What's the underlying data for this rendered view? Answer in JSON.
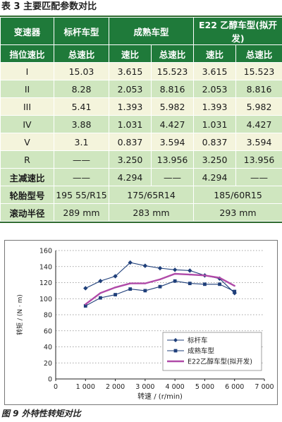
{
  "table": {
    "title": "表 3   主要匹配参数对比",
    "header1": [
      "变速器",
      "标杆车型",
      "成熟车型",
      "E22 乙醇车型(拟开发)"
    ],
    "header2": [
      "挡位速比",
      "总速比",
      "速比",
      "总速比",
      "速比",
      "总速比"
    ],
    "gear_rows": [
      [
        "I",
        "15.03",
        "3.615",
        "15.523",
        "3.615",
        "15.523"
      ],
      [
        "II",
        "8.28",
        "2.053",
        "8.816",
        "2.053",
        "8.816"
      ],
      [
        "III",
        "5.41",
        "1.393",
        "5.982",
        "1.393",
        "5.982"
      ],
      [
        "IV",
        "3.88",
        "1.031",
        "4.427",
        "1.031",
        "4.427"
      ],
      [
        "V",
        "3.1",
        "0.837",
        "3.594",
        "0.837",
        "3.594"
      ],
      [
        "R",
        "——",
        "3.250",
        "13.956",
        "3.250",
        "13.956"
      ]
    ],
    "final_drive": {
      "label": "主减速比",
      "benchmark": "——",
      "mature_ratio": "4.294",
      "mature_total": "——",
      "e22_ratio": "4.294",
      "e22_total": "——"
    },
    "tire": {
      "label": "轮胎型号",
      "benchmark": "195 55/R15",
      "mature": "175/65R14",
      "e22": "185/60R15"
    },
    "radius": {
      "label": "滚动半径",
      "benchmark": "289 mm",
      "mature": "283 mm",
      "e22": "293 mm"
    }
  },
  "chart_data": {
    "type": "line",
    "title": "",
    "xlabel": "转速 / (r/min)",
    "ylabel": "转矩 / (N · m)",
    "xlim": [
      0,
      7000
    ],
    "ylim": [
      0,
      160
    ],
    "x_ticks": [
      0,
      1000,
      2000,
      3000,
      4000,
      5000,
      6000,
      7000
    ],
    "x_tick_labels": [
      "0",
      "1 000",
      "2 000",
      "3 000",
      "4 000",
      "5 000",
      "6 000",
      "7 000"
    ],
    "y_ticks": [
      0,
      20,
      40,
      60,
      80,
      100,
      120,
      140,
      160
    ],
    "grid": "horizontal-dotted",
    "legend_position": "bottom-right",
    "series": [
      {
        "name": "标杆车",
        "color": "#1f3f7a",
        "marker": "diamond",
        "x": [
          1000,
          1500,
          2000,
          2500,
          3000,
          3500,
          4000,
          4500,
          5000,
          5500,
          6000
        ],
        "y": [
          113,
          122,
          128,
          145,
          141,
          138,
          136,
          135,
          129,
          125,
          107
        ]
      },
      {
        "name": "成熟车型",
        "color": "#1f3f7a",
        "marker": "square",
        "x": [
          1000,
          1500,
          2000,
          2500,
          3000,
          3500,
          4000,
          4500,
          5000,
          5500,
          6000
        ],
        "y": [
          91,
          101,
          105,
          112,
          110,
          115,
          122,
          119,
          118,
          118,
          109
        ]
      },
      {
        "name": "E22乙醇车型(拟开发)",
        "color": "#b04aa8",
        "marker": "none",
        "x": [
          1000,
          1500,
          2000,
          2500,
          3000,
          3500,
          4000,
          4500,
          5000,
          5500,
          6000
        ],
        "y": [
          93,
          107,
          114,
          119,
          119,
          124,
          131,
          130,
          129,
          126,
          116
        ]
      }
    ]
  },
  "caption": "图 9   外特性转矩对比"
}
